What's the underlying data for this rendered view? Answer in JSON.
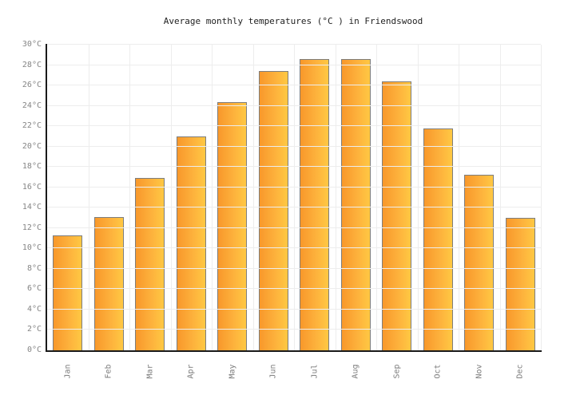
{
  "chart_data": {
    "type": "bar",
    "title": "Average monthly temperatures (°C ) in Friendswood",
    "categories": [
      "Jan",
      "Feb",
      "Mar",
      "Apr",
      "May",
      "Jun",
      "Jul",
      "Aug",
      "Sep",
      "Oct",
      "Nov",
      "Dec"
    ],
    "values": [
      11.3,
      13.1,
      16.9,
      21.0,
      24.4,
      27.4,
      28.6,
      28.6,
      26.4,
      21.8,
      17.2,
      13.0
    ],
    "xlabel": "",
    "ylabel": "",
    "ylim": [
      0,
      30
    ],
    "y_tick_step": 2,
    "y_tick_labels": [
      "0°C",
      "2°C",
      "4°C",
      "6°C",
      "8°C",
      "10°C",
      "12°C",
      "14°C",
      "16°C",
      "18°C",
      "20°C",
      "22°C",
      "24°C",
      "26°C",
      "28°C",
      "30°C"
    ],
    "grid": "on",
    "legend": "none",
    "colors": {
      "bar_gradient_left": "#f8982b",
      "bar_gradient_right": "#ffc843",
      "bar_border": "#7d7d7d",
      "axis": "#1a1a1a",
      "gridline": "#ededed",
      "tick_text": "#858585",
      "title_text": "#222222",
      "background": "#ffffff"
    }
  }
}
